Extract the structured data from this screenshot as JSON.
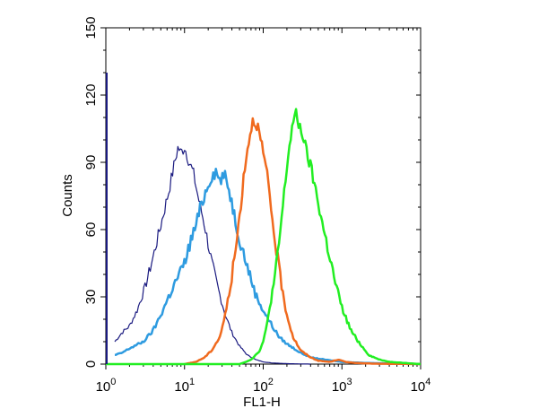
{
  "chart_data": {
    "type": "line",
    "title": "",
    "xlabel": "FL1-H",
    "ylabel": "Counts",
    "x_scale": "log",
    "xlim": [
      1,
      10000
    ],
    "ylim": [
      0,
      150
    ],
    "grid": false,
    "x_ticks": [
      {
        "base": "10",
        "exp": "0",
        "value": 1
      },
      {
        "base": "10",
        "exp": "1",
        "value": 10
      },
      {
        "base": "10",
        "exp": "2",
        "value": 100
      },
      {
        "base": "10",
        "exp": "3",
        "value": 1000
      },
      {
        "base": "10",
        "exp": "4",
        "value": 10000
      }
    ],
    "y_ticks": [
      "0",
      "30",
      "60",
      "90",
      "120",
      "150"
    ],
    "series": [
      {
        "color": "#1a1a80",
        "stroke_width": 1.2,
        "points": [
          [
            1.3,
            10
          ],
          [
            1.6,
            14
          ],
          [
            2,
            17
          ],
          [
            2.5,
            24
          ],
          [
            3.2,
            35
          ],
          [
            4,
            48
          ],
          [
            5,
            62
          ],
          [
            6.3,
            77
          ],
          [
            7.5,
            90
          ],
          [
            8.3,
            97
          ],
          [
            9,
            94
          ],
          [
            10,
            97
          ],
          [
            11.5,
            90
          ],
          [
            13,
            85
          ],
          [
            15,
            74
          ],
          [
            18,
            62
          ],
          [
            22,
            46
          ],
          [
            27,
            33
          ],
          [
            33,
            22
          ],
          [
            40,
            14
          ],
          [
            50,
            8
          ],
          [
            63,
            4
          ],
          [
            80,
            2
          ],
          [
            100,
            1
          ],
          [
            130,
            0.5
          ],
          [
            200,
            0.2
          ],
          [
            400,
            0
          ]
        ]
      },
      {
        "color": "#2e9be0",
        "stroke_width": 2.5,
        "points": [
          [
            1.3,
            4
          ],
          [
            1.6,
            5
          ],
          [
            2,
            7
          ],
          [
            3,
            10
          ],
          [
            4,
            15
          ],
          [
            5,
            22
          ],
          [
            6.3,
            30
          ],
          [
            8,
            38
          ],
          [
            10,
            45
          ],
          [
            12,
            55
          ],
          [
            14,
            62
          ],
          [
            16,
            70
          ],
          [
            19,
            78
          ],
          [
            22,
            84
          ],
          [
            25,
            86
          ],
          [
            28,
            82
          ],
          [
            32,
            84
          ],
          [
            35,
            81
          ],
          [
            40,
            72
          ],
          [
            45,
            63
          ],
          [
            50,
            56
          ],
          [
            60,
            46
          ],
          [
            70,
            38
          ],
          [
            80,
            31
          ],
          [
            100,
            24
          ],
          [
            130,
            17
          ],
          [
            160,
            12
          ],
          [
            200,
            9
          ],
          [
            300,
            5
          ],
          [
            400,
            3
          ],
          [
            600,
            2
          ],
          [
            1000,
            1
          ],
          [
            2000,
            0.5
          ],
          [
            10000,
            0
          ]
        ]
      },
      {
        "color": "#f06a1e",
        "stroke_width": 2.5,
        "points": [
          [
            10,
            0
          ],
          [
            14,
            1
          ],
          [
            18,
            3
          ],
          [
            22,
            6
          ],
          [
            28,
            12
          ],
          [
            33,
            22
          ],
          [
            38,
            34
          ],
          [
            45,
            52
          ],
          [
            50,
            66
          ],
          [
            55,
            80
          ],
          [
            60,
            92
          ],
          [
            66,
            100
          ],
          [
            72,
            108
          ],
          [
            80,
            109
          ],
          [
            86,
            105
          ],
          [
            95,
            98
          ],
          [
            110,
            86
          ],
          [
            125,
            70
          ],
          [
            140,
            56
          ],
          [
            160,
            42
          ],
          [
            180,
            30
          ],
          [
            200,
            22
          ],
          [
            240,
            12
          ],
          [
            300,
            6
          ],
          [
            400,
            3
          ],
          [
            500,
            1.5
          ],
          [
            700,
            1
          ],
          [
            900,
            2
          ],
          [
            1100,
            1
          ],
          [
            1500,
            0.5
          ],
          [
            2500,
            0.2
          ],
          [
            10000,
            0
          ]
        ]
      },
      {
        "color": "#22ee22",
        "stroke_width": 2.5,
        "points": [
          [
            1,
            0
          ],
          [
            10,
            0
          ],
          [
            50,
            0
          ],
          [
            60,
            1
          ],
          [
            70,
            2
          ],
          [
            80,
            4
          ],
          [
            90,
            6
          ],
          [
            100,
            10
          ],
          [
            110,
            16
          ],
          [
            120,
            25
          ],
          [
            140,
            38
          ],
          [
            160,
            55
          ],
          [
            180,
            72
          ],
          [
            200,
            88
          ],
          [
            220,
            100
          ],
          [
            240,
            108
          ],
          [
            260,
            111
          ],
          [
            280,
            107
          ],
          [
            310,
            104
          ],
          [
            350,
            95
          ],
          [
            400,
            88
          ],
          [
            500,
            72
          ],
          [
            600,
            58
          ],
          [
            700,
            48
          ],
          [
            800,
            38
          ],
          [
            1000,
            25
          ],
          [
            1300,
            15
          ],
          [
            1700,
            9
          ],
          [
            2200,
            4
          ],
          [
            3000,
            2
          ],
          [
            4000,
            1
          ],
          [
            10000,
            0
          ]
        ]
      }
    ]
  }
}
